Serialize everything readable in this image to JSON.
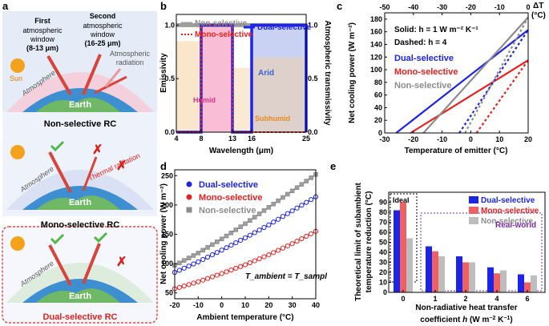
{
  "panel_a": {
    "label": "a",
    "first_window": {
      "l1": "First",
      "l2": "atmospheric",
      "l3": "window",
      "l4": "(8-13 μm)"
    },
    "second_window": {
      "l1": "Second",
      "l2": "atmospheric",
      "l3": "window",
      "l4": "(16-25 μm)"
    },
    "atm_radiation": {
      "l1": "Atmospheric",
      "l2": "radiation"
    },
    "sun": "Sun",
    "atmosphere": "Atmosphere",
    "earth": "Earth",
    "thermal_radiation": "Thermal radiation",
    "captions": [
      "Non-selective RC",
      "Mono-selective RC",
      "Dual-selective RC"
    ]
  },
  "panel_b": {
    "label": "b",
    "legend": [
      "Non-selective",
      "Mono-selective",
      "Dual-selective"
    ],
    "annotations": [
      "Humid",
      "Arid",
      "Subhumid"
    ],
    "chart_data": {
      "type": "line",
      "xlabel": "Wavelength (μm)",
      "ylabel": "Emissivity",
      "y2label": "Atmospheric transmissivity",
      "xticks": [
        "4",
        "8",
        "13",
        "16",
        "25"
      ],
      "ytick_labels": [
        "0.0",
        "0.5",
        "1.0"
      ],
      "ylim": [
        0,
        1.1
      ],
      "series": [
        {
          "name": "Non-selective",
          "color": "#9e9e9e",
          "x": [
            4,
            25
          ],
          "y": [
            1.0,
            1.0
          ]
        },
        {
          "name": "Mono-selective",
          "color": "#e8211d",
          "x": [
            4,
            8,
            8,
            13,
            13,
            25
          ],
          "y": [
            0,
            0,
            1,
            1,
            0,
            0
          ]
        },
        {
          "name": "Dual-selective",
          "color": "#1c24e8",
          "x": [
            4,
            8,
            8,
            13,
            13,
            16,
            16,
            25,
            25
          ],
          "y": [
            0,
            0,
            1,
            1,
            0,
            0,
            1,
            1,
            0
          ]
        }
      ]
    }
  },
  "panel_c": {
    "label": "c",
    "note_solid": "Solid: h = 1 W m⁻² K⁻¹",
    "note_dashed": "Dashed: h = 4",
    "legend": [
      "Dual-selective",
      "Mono-selective",
      "Non-selective"
    ],
    "top_axis_label": "ΔT",
    "top_axis_unit": "(°C)",
    "chart_data": {
      "type": "line",
      "xlabel": "Temperature of emitter (°C)",
      "ylabel": "Net cooling power (W m⁻²)",
      "xlim": [
        -30,
        20
      ],
      "ylim": [
        0,
        190
      ],
      "xtick_labels": [
        "-30",
        "-20",
        "-10",
        "0",
        "10",
        "20"
      ],
      "ytick_labels": [
        "0",
        "20",
        "40",
        "60",
        "80",
        "100",
        "120",
        "140",
        "160",
        "180"
      ],
      "top_xtick_labels": [
        "-50",
        "-40",
        "-30",
        "-20",
        "-10",
        "0"
      ],
      "series": [
        {
          "name": "Dual-selective (h=1)",
          "color": "#1c24e8",
          "x": [
            -26,
            20
          ],
          "y": [
            0,
            163
          ]
        },
        {
          "name": "Mono-selective (h=1)",
          "color": "#e8211d",
          "x": [
            -21,
            20
          ],
          "y": [
            0,
            115
          ]
        },
        {
          "name": "Non-selective (h=1)",
          "color": "#8c8c8c",
          "x": [
            -16.5,
            20
          ],
          "y": [
            0,
            183
          ]
        },
        {
          "name": "Dual-selective (h=4)",
          "color": "#1c24e8",
          "x": [
            -4,
            20
          ],
          "y": [
            0,
            163
          ]
        },
        {
          "name": "Mono-selective (h=4)",
          "color": "#e8211d",
          "x": [
            2,
            20
          ],
          "y": [
            0,
            115
          ]
        },
        {
          "name": "Non-selective (h=4)",
          "color": "#8c8c8c",
          "x": [
            -2,
            20
          ],
          "y": [
            0,
            183
          ]
        }
      ]
    }
  },
  "panel_d": {
    "label": "d",
    "legend": [
      "Dual-selective",
      "Mono-selective",
      "Non-selective"
    ],
    "note": "T_ambient = T_sample",
    "chart_data": {
      "type": "line",
      "xlabel": "Ambient temperature (°C)",
      "ylabel": "Net cooling power (W m⁻²)",
      "xlim": [
        -20,
        40
      ],
      "ylim": [
        40,
        260
      ],
      "xtick_labels": [
        "-20",
        "-10",
        "0",
        "10",
        "20",
        "30",
        "40"
      ],
      "ytick_labels": [
        "50",
        "100",
        "150",
        "200",
        "250"
      ],
      "x": [
        -20,
        -10,
        0,
        10,
        20,
        30,
        40
      ],
      "series": [
        {
          "name": "Non-selective",
          "color": "#8c8c8c",
          "values": [
            97,
            118,
            142,
            168,
            196,
            224,
            252
          ]
        },
        {
          "name": "Dual-selective",
          "color": "#1c24e8",
          "values": [
            85,
            103,
            123,
            144,
            166,
            190,
            214
          ]
        },
        {
          "name": "Mono-selective",
          "color": "#e8211d",
          "values": [
            57,
            69,
            83,
            98,
            115,
            134,
            155
          ]
        }
      ]
    }
  },
  "panel_e": {
    "label": "e",
    "ideal": "Ideal",
    "real_world": "Real-world",
    "chart_data": {
      "type": "bar",
      "xlabel": "Non-radiative heat transfer coefficient h (W m⁻² K⁻¹)",
      "ylabel": "Theoretical limit of subambient temperature reduction (°C)",
      "categories": [
        "0",
        "1",
        "2",
        "4",
        "6"
      ],
      "ylim": [
        0,
        100
      ],
      "ytick_labels": [
        "0",
        "10",
        "20",
        "30",
        "40",
        "50",
        "60",
        "70",
        "80",
        "90"
      ],
      "series": [
        {
          "name": "Dual-selective",
          "color": "#1c24e8",
          "values": [
            82,
            46,
            36,
            25,
            18
          ]
        },
        {
          "name": "Mono-selective",
          "color": "#f06060",
          "values": [
            90,
            41,
            30,
            19,
            10
          ]
        },
        {
          "name": "Non-selective",
          "color": "#bdbdbd",
          "values": [
            54,
            36,
            30,
            22,
            17
          ]
        }
      ]
    }
  }
}
